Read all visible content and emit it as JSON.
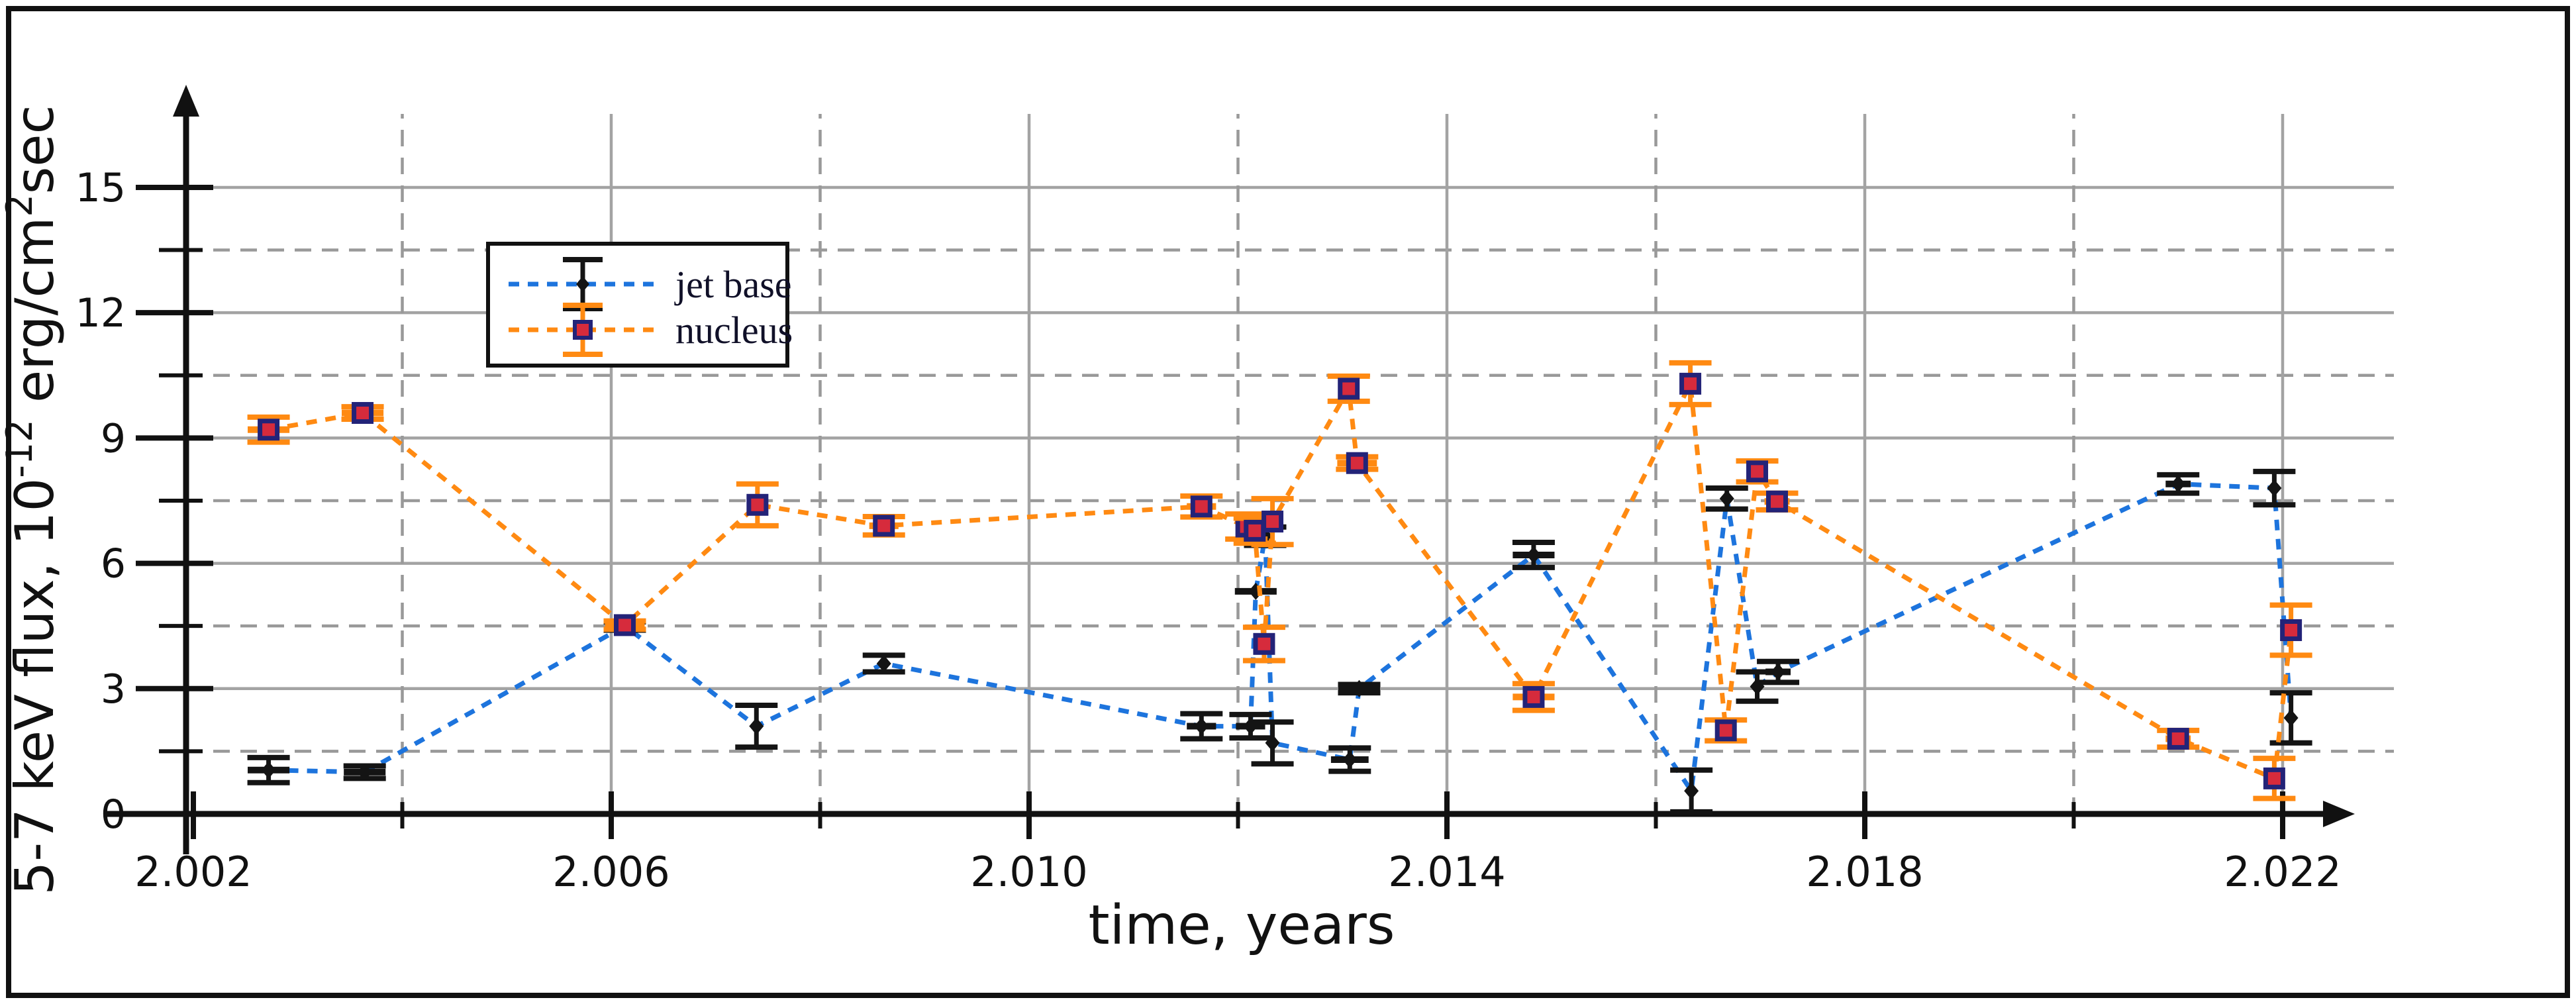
{
  "figure": {
    "background": "#ffffff",
    "frame_color": "#111111"
  },
  "chart_data": {
    "type": "line",
    "title": "",
    "xlabel": "time, years",
    "ylabel": "5-7 keV flux, 10⁻¹² erg/cm²sec",
    "ylabel_parts": [
      {
        "t": "5-7 keV flux, 10"
      },
      {
        "t": "-12",
        "sup": true
      },
      {
        "t": " erg/cm"
      },
      {
        "t": "2",
        "sup": true
      },
      {
        "t": "sec"
      }
    ],
    "xlim": [
      2001.3,
      2023.3
    ],
    "ylim": [
      0,
      16.7
    ],
    "x_major_ticks": [
      2002,
      2006,
      2010,
      2014,
      2018,
      2022
    ],
    "x_tick_labels": [
      "2.002",
      "2.006",
      "2.010",
      "2.014",
      "2.018",
      "2.022"
    ],
    "x_minor_ticks": [
      2004,
      2008,
      2012,
      2016,
      2020
    ],
    "y_major_ticks": [
      0,
      3,
      6,
      9,
      12,
      15
    ],
    "y_tick_labels": [
      "0",
      "3",
      "6",
      "9",
      "12",
      "15"
    ],
    "y_minor_ticks": [
      1.5,
      4.5,
      7.5,
      10.5,
      13.5
    ],
    "grid": {
      "solid_color": "#a3a3a3",
      "dashed_color": "#999999",
      "on": true
    },
    "axis_color": "#111111",
    "legend": {
      "position": "upper-left-inside",
      "border_color": "#111111",
      "entries": [
        {
          "label": "jet base"
        },
        {
          "label": "nucleus"
        }
      ]
    },
    "series": [
      {
        "name": "jet base",
        "line_color": "#1d74dd",
        "line_style": "dashed",
        "marker": "diamond",
        "marker_color": "#141414",
        "error_color": "#141414",
        "points": [
          {
            "t": 2002.72,
            "f": 1.05,
            "ef": 0.3,
            "et": 0.2
          },
          {
            "t": 2003.64,
            "f": 1.0,
            "ef": 0.15,
            "et": 0.2
          },
          {
            "t": 2006.13,
            "f": 4.5,
            "ef": 0.1,
            "et": 0.19
          },
          {
            "t": 2007.39,
            "f": 2.1,
            "ef": 0.5,
            "et": 0
          },
          {
            "t": 2008.61,
            "f": 3.6,
            "ef": 0.2,
            "et": 0
          },
          {
            "t": 2011.65,
            "f": 2.1,
            "ef": 0.3,
            "et": 0.14
          },
          {
            "t": 2012.12,
            "f": 2.1,
            "ef": 0.28,
            "et": 0.14
          },
          {
            "t": 2012.17,
            "f": 5.33,
            "ef": 0.06,
            "et": 0.2
          },
          {
            "t": 2012.26,
            "f": 6.65,
            "ef": 0.22,
            "et": 0.05
          },
          {
            "t": 2012.33,
            "f": 1.7,
            "ef": 0.5,
            "et": 0
          },
          {
            "t": 2013.07,
            "f": 1.3,
            "ef": 0.28,
            "et": 0.18
          },
          {
            "t": 2013.16,
            "f": 3.0,
            "ef": 0.1,
            "et": 0.2
          },
          {
            "t": 2014.83,
            "f": 6.2,
            "ef": 0.3,
            "et": 0.2
          },
          {
            "t": 2016.34,
            "f": 0.55,
            "ef": 0.5,
            "et": 0
          },
          {
            "t": 2016.68,
            "f": 7.55,
            "ef": 0.25,
            "et": 0
          },
          {
            "t": 2016.97,
            "f": 3.05,
            "ef": 0.35,
            "et": 0
          },
          {
            "t": 2017.17,
            "f": 3.4,
            "ef": 0.25,
            "et": 0.12
          },
          {
            "t": 2021.0,
            "f": 7.9,
            "ef": 0.22,
            "et": 0.12
          },
          {
            "t": 2021.92,
            "f": 7.8,
            "ef": 0.4,
            "et": 0
          },
          {
            "t": 2022.08,
            "f": 2.3,
            "ef": 0.6,
            "et": 0
          }
        ]
      },
      {
        "name": "nucleus",
        "line_color": "#ff8a12",
        "line_style": "dashed",
        "marker": "square",
        "marker_fill": "#d62b3c",
        "marker_edge": "#232378",
        "error_color": "#ff8a12",
        "points": [
          {
            "t": 2002.72,
            "f": 9.2,
            "ef": 0.3,
            "et": 0.2
          },
          {
            "t": 2003.62,
            "f": 9.6,
            "ef": 0.15,
            "et": 0.2
          },
          {
            "t": 2006.13,
            "f": 4.52,
            "ef": 0.1,
            "et": 0.19
          },
          {
            "t": 2007.4,
            "f": 7.4,
            "ef": 0.5,
            "et": 0
          },
          {
            "t": 2008.61,
            "f": 6.9,
            "ef": 0.22,
            "et": 0.14
          },
          {
            "t": 2011.65,
            "f": 7.36,
            "ef": 0.25,
            "et": 0.14
          },
          {
            "t": 2012.08,
            "f": 6.88,
            "ef": 0.3,
            "et": 0
          },
          {
            "t": 2012.16,
            "f": 6.78,
            "ef": 0.3,
            "et": 0
          },
          {
            "t": 2012.25,
            "f": 4.07,
            "ef": 0.4,
            "et": 0
          },
          {
            "t": 2012.33,
            "f": 7.0,
            "ef": 0.55,
            "et": 0
          },
          {
            "t": 2013.06,
            "f": 10.18,
            "ef": 0.3,
            "et": 0
          },
          {
            "t": 2013.14,
            "f": 8.4,
            "ef": 0.15,
            "et": 0.19
          },
          {
            "t": 2014.83,
            "f": 2.8,
            "ef": 0.32,
            "et": 0.2
          },
          {
            "t": 2016.33,
            "f": 10.3,
            "ef": 0.5,
            "et": 0
          },
          {
            "t": 2016.67,
            "f": 2.0,
            "ef": 0.25,
            "et": 0
          },
          {
            "t": 2016.97,
            "f": 8.2,
            "ef": 0.25,
            "et": 0
          },
          {
            "t": 2017.16,
            "f": 7.48,
            "ef": 0.2,
            "et": 0.12
          },
          {
            "t": 2021.0,
            "f": 1.8,
            "ef": 0.2,
            "et": 0.12
          },
          {
            "t": 2021.92,
            "f": 0.85,
            "ef": 0.48,
            "et": 0
          },
          {
            "t": 2022.08,
            "f": 4.4,
            "ef": 0.6,
            "et": 0
          }
        ]
      }
    ]
  }
}
